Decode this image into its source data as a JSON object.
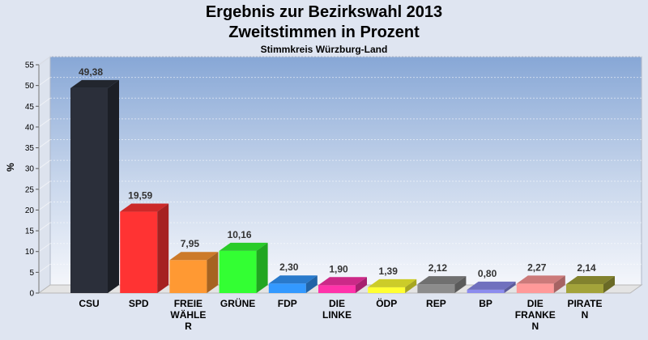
{
  "chart_data": {
    "type": "bar",
    "title": "Ergebnis zur Bezirkswahl 2013",
    "subtitle_line": "Zweitstimmen in Prozent",
    "subtitle": "Stimmkreis Würzburg-Land",
    "ylabel": "%",
    "xlabel": "",
    "ylim": [
      0,
      55
    ],
    "yticks": [
      0,
      5,
      10,
      15,
      20,
      25,
      30,
      35,
      40,
      45,
      50,
      55
    ],
    "grid": true,
    "categories": [
      "CSU",
      "SPD",
      "FREIE WÄHLE R",
      "GRÜNE",
      "FDP",
      "DIE LINKE",
      "ÖDP",
      "REP",
      "BP",
      "DIE FRANKE N",
      "PIRATE N"
    ],
    "category_lines": [
      [
        "CSU"
      ],
      [
        "SPD"
      ],
      [
        "FREIE",
        "WÄHLE",
        "R"
      ],
      [
        "GRÜNE"
      ],
      [
        "FDP"
      ],
      [
        "DIE",
        "LINKE"
      ],
      [
        "ÖDP"
      ],
      [
        "REP"
      ],
      [
        "BP"
      ],
      [
        "DIE",
        "FRANKE",
        "N"
      ],
      [
        "PIRATE",
        "N"
      ]
    ],
    "values": [
      49.38,
      19.59,
      7.95,
      10.16,
      2.3,
      1.9,
      1.39,
      2.12,
      0.8,
      2.27,
      2.14
    ],
    "value_labels": [
      "49,38",
      "19,59",
      "7,95",
      "10,16",
      "2,30",
      "1,90",
      "1,39",
      "2,12",
      "0,80",
      "2,27",
      "2,14"
    ],
    "colors": [
      "#2b2f3a",
      "#ff3333",
      "#ff9933",
      "#33ff33",
      "#3399ff",
      "#ff33aa",
      "#ffff33",
      "#8c8c8c",
      "#8c8cee",
      "#ff9999",
      "#a3a33a"
    ]
  }
}
